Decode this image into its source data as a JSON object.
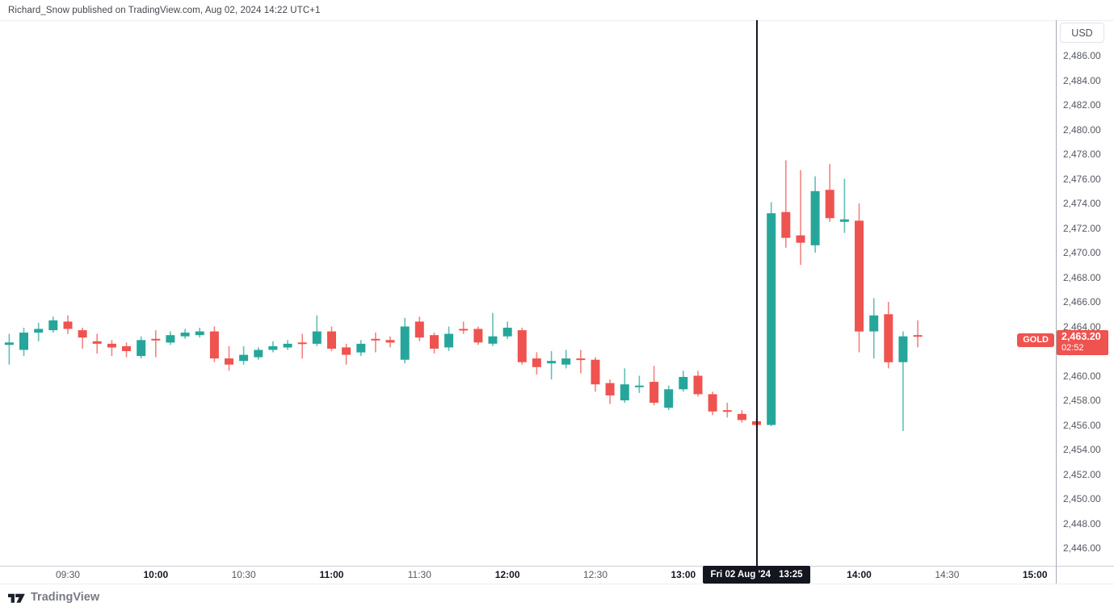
{
  "header": {
    "attribution": "Richard_Snow published on TradingView.com, Aug 02, 2024 14:22 UTC+1"
  },
  "price_axis": {
    "currency_label": "USD",
    "min": 2446,
    "max": 2486,
    "step": 2
  },
  "time_axis": {
    "visible_ticks": [
      "09:30",
      "10:00",
      "10:30",
      "11:00",
      "11:30",
      "12:00",
      "12:30",
      "13:00",
      "14:00",
      "14:30",
      "15:00"
    ]
  },
  "time_marker": {
    "date_label": "Fri 02 Aug '24",
    "time_label": "13:25",
    "time": "13:25"
  },
  "symbol_badge": {
    "label": "GOLD"
  },
  "price_badge": {
    "price": "2,463.20",
    "value": 2463.2,
    "countdown": "02:52"
  },
  "footer": {
    "logo_text": "TradingView"
  },
  "colors": {
    "up": "#26a69a",
    "down": "#ef5350",
    "marker": "#14161f",
    "text_dark": "#131722",
    "text_gray": "#555962"
  },
  "chart_data": {
    "type": "candlestick",
    "title": "GOLD 5-minute candlestick chart",
    "symbol": "GOLD",
    "currency": "USD",
    "interval_minutes": 5,
    "start_time": "09:10",
    "ylim": [
      2446,
      2486
    ],
    "y_tick_step": 2,
    "grid": false,
    "columns": [
      "time",
      "open",
      "high",
      "low",
      "close"
    ],
    "candles": [
      [
        "09:10",
        2462.5,
        2463.4,
        2460.9,
        2462.7
      ],
      [
        "09:15",
        2462.1,
        2463.9,
        2461.6,
        2463.5
      ],
      [
        "09:20",
        2463.5,
        2464.3,
        2462.8,
        2463.8
      ],
      [
        "09:25",
        2463.7,
        2464.8,
        2463.5,
        2464.5
      ],
      [
        "09:30",
        2464.4,
        2464.9,
        2463.4,
        2463.8
      ],
      [
        "09:35",
        2463.7,
        2463.9,
        2462.2,
        2463.1
      ],
      [
        "09:40",
        2462.8,
        2463.4,
        2461.8,
        2462.6
      ],
      [
        "09:45",
        2462.6,
        2462.9,
        2461.6,
        2462.3
      ],
      [
        "09:50",
        2462.4,
        2462.7,
        2461.5,
        2462.0
      ],
      [
        "09:55",
        2461.6,
        2463.2,
        2461.4,
        2462.9
      ],
      [
        "10:00",
        2463.0,
        2463.7,
        2461.5,
        2462.9
      ],
      [
        "10:05",
        2462.7,
        2463.6,
        2462.5,
        2463.3
      ],
      [
        "10:10",
        2463.2,
        2463.8,
        2463.0,
        2463.5
      ],
      [
        "10:15",
        2463.3,
        2463.9,
        2463.1,
        2463.6
      ],
      [
        "10:20",
        2463.6,
        2464.0,
        2461.1,
        2461.4
      ],
      [
        "10:25",
        2461.4,
        2462.4,
        2460.4,
        2460.9
      ],
      [
        "10:30",
        2461.2,
        2462.4,
        2460.9,
        2461.7
      ],
      [
        "10:35",
        2461.5,
        2462.3,
        2461.3,
        2462.1
      ],
      [
        "10:40",
        2462.1,
        2462.8,
        2461.9,
        2462.4
      ],
      [
        "10:45",
        2462.3,
        2462.9,
        2462.1,
        2462.6
      ],
      [
        "10:50",
        2462.7,
        2463.4,
        2461.4,
        2462.6
      ],
      [
        "10:55",
        2462.6,
        2464.9,
        2462.4,
        2463.6
      ],
      [
        "11:00",
        2463.6,
        2464.0,
        2462.0,
        2462.2
      ],
      [
        "11:05",
        2462.3,
        2462.6,
        2460.9,
        2461.7
      ],
      [
        "11:10",
        2461.9,
        2462.9,
        2461.6,
        2462.6
      ],
      [
        "11:15",
        2463.0,
        2463.5,
        2461.9,
        2462.9
      ],
      [
        "11:20",
        2462.9,
        2463.2,
        2462.3,
        2462.7
      ],
      [
        "11:25",
        2461.3,
        2464.7,
        2461.0,
        2464.0
      ],
      [
        "11:30",
        2464.4,
        2464.8,
        2462.8,
        2463.1
      ],
      [
        "11:35",
        2463.3,
        2463.5,
        2461.8,
        2462.2
      ],
      [
        "11:40",
        2462.3,
        2464.0,
        2462.0,
        2463.4
      ],
      [
        "11:45",
        2463.8,
        2464.4,
        2463.4,
        2463.7
      ],
      [
        "11:50",
        2463.8,
        2464.0,
        2462.5,
        2462.7
      ],
      [
        "11:55",
        2462.6,
        2465.1,
        2462.4,
        2463.2
      ],
      [
        "12:00",
        2463.2,
        2464.4,
        2463.0,
        2463.9
      ],
      [
        "12:05",
        2463.7,
        2463.9,
        2460.9,
        2461.1
      ],
      [
        "12:10",
        2461.4,
        2461.9,
        2460.1,
        2460.7
      ],
      [
        "12:15",
        2461.0,
        2462.0,
        2459.7,
        2461.2
      ],
      [
        "12:20",
        2460.9,
        2462.1,
        2460.6,
        2461.4
      ],
      [
        "12:25",
        2461.4,
        2462.1,
        2460.2,
        2461.3
      ],
      [
        "12:30",
        2461.3,
        2461.5,
        2458.7,
        2459.3
      ],
      [
        "12:35",
        2459.4,
        2459.7,
        2457.7,
        2458.4
      ],
      [
        "12:40",
        2458.0,
        2460.6,
        2457.8,
        2459.3
      ],
      [
        "12:45",
        2459.1,
        2460.0,
        2458.6,
        2459.2
      ],
      [
        "12:50",
        2459.5,
        2460.8,
        2457.6,
        2457.8
      ],
      [
        "12:55",
        2457.4,
        2459.2,
        2457.2,
        2458.9
      ],
      [
        "13:00",
        2458.9,
        2460.4,
        2458.7,
        2459.9
      ],
      [
        "13:05",
        2460.0,
        2460.4,
        2458.3,
        2458.5
      ],
      [
        "13:10",
        2458.5,
        2458.7,
        2456.8,
        2457.1
      ],
      [
        "13:15",
        2457.2,
        2457.8,
        2456.6,
        2457.1
      ],
      [
        "13:20",
        2456.9,
        2457.2,
        2456.2,
        2456.4
      ],
      [
        "13:25",
        2456.3,
        2456.5,
        2455.8,
        2456.0
      ],
      [
        "13:30",
        2456.0,
        2474.1,
        2455.9,
        2473.2
      ],
      [
        "13:35",
        2473.3,
        2477.5,
        2470.4,
        2471.2
      ],
      [
        "13:40",
        2471.4,
        2476.7,
        2469.0,
        2470.8
      ],
      [
        "13:45",
        2470.6,
        2476.2,
        2470.0,
        2475.0
      ],
      [
        "13:50",
        2475.1,
        2477.2,
        2472.5,
        2472.8
      ],
      [
        "13:55",
        2472.5,
        2476.0,
        2471.6,
        2472.7
      ],
      [
        "14:00",
        2472.6,
        2474.0,
        2461.9,
        2463.6
      ],
      [
        "14:05",
        2463.6,
        2466.3,
        2461.4,
        2464.9
      ],
      [
        "14:10",
        2465.0,
        2466.0,
        2460.6,
        2461.1
      ],
      [
        "14:15",
        2461.1,
        2463.6,
        2455.5,
        2463.2
      ],
      [
        "14:20",
        2463.3,
        2464.5,
        2462.3,
        2463.2
      ]
    ]
  }
}
